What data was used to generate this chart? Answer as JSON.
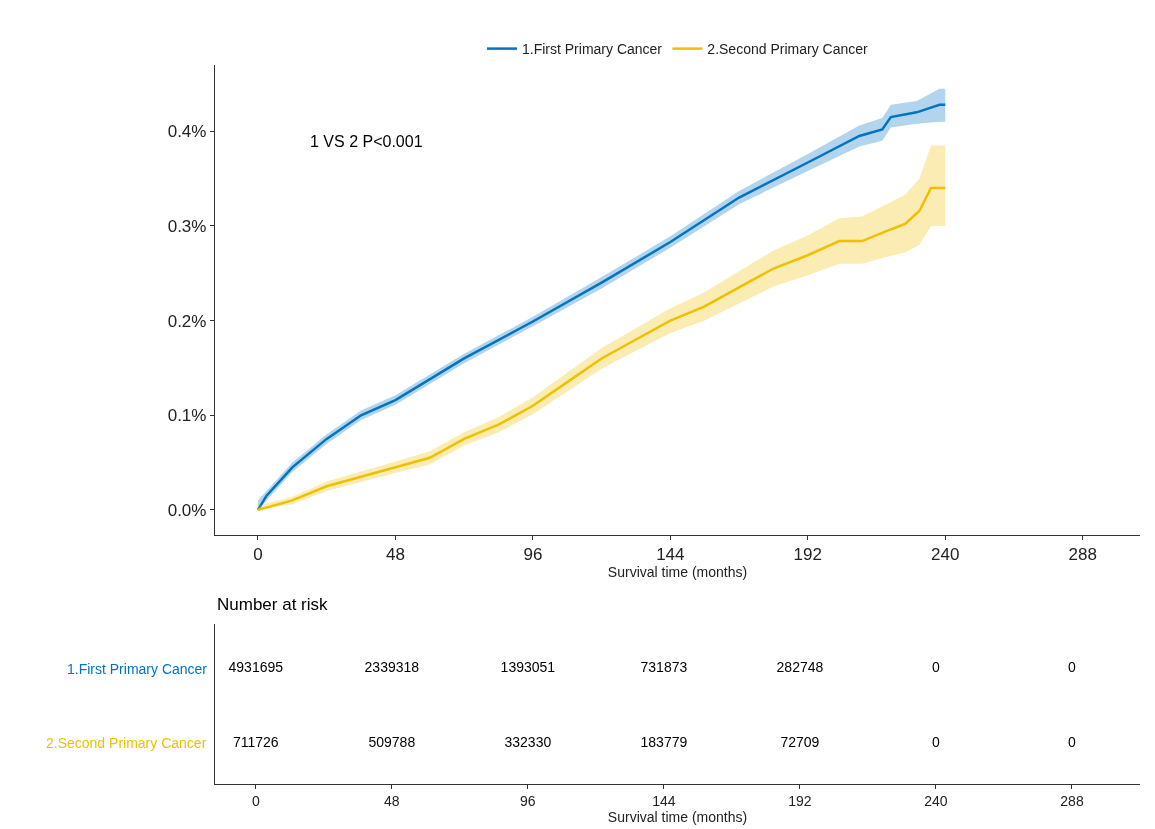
{
  "chart_data": [
    {
      "type": "line",
      "xlabel": "Survival time (months)",
      "xlim": [
        -15,
        308
      ],
      "xticks": [
        0,
        48,
        96,
        144,
        192,
        240,
        288
      ],
      "ylim": [
        -0.026,
        0.47
      ],
      "yticks": [
        {
          "value": 0,
          "label": "0.0%"
        },
        {
          "value": 0.1,
          "label": "0.1%"
        },
        {
          "value": 0.2,
          "label": "0.2%"
        },
        {
          "value": 0.3,
          "label": "0.3%"
        },
        {
          "value": 0.4,
          "label": "0.4%"
        }
      ],
      "legend": "top",
      "annotations": [
        "1 VS 2 P<0.001"
      ],
      "series": [
        {
          "name": "1.First Primary Cancer",
          "color": "#0073c2",
          "x": [
            0,
            3,
            12,
            24,
            36,
            48,
            72,
            96,
            120,
            144,
            168,
            192,
            210,
            218,
            221,
            230,
            238,
            240
          ],
          "values": [
            0,
            0.015,
            0.045,
            0.075,
            0.1,
            0.116,
            0.16,
            0.199,
            0.24,
            0.283,
            0.33,
            0.367,
            0.395,
            0.402,
            0.415,
            0.42,
            0.428,
            0.428
          ],
          "lower": [
            0,
            0.01,
            0.04,
            0.07,
            0.095,
            0.111,
            0.155,
            0.194,
            0.234,
            0.277,
            0.323,
            0.358,
            0.384,
            0.39,
            0.404,
            0.408,
            0.41,
            0.41
          ],
          "upper": [
            0.01,
            0.02,
            0.05,
            0.08,
            0.105,
            0.121,
            0.165,
            0.204,
            0.246,
            0.289,
            0.337,
            0.376,
            0.406,
            0.414,
            0.428,
            0.432,
            0.445,
            0.445
          ]
        },
        {
          "name": "2.Second Primary Cancer",
          "color": "#efc000",
          "x": [
            0,
            12,
            24,
            48,
            60,
            72,
            84,
            96,
            108,
            120,
            132,
            144,
            156,
            168,
            180,
            192,
            203,
            211,
            219,
            226,
            231,
            235,
            240
          ],
          "values": [
            0,
            0.01,
            0.025,
            0.045,
            0.055,
            0.075,
            0.09,
            0.11,
            0.135,
            0.16,
            0.18,
            0.2,
            0.215,
            0.235,
            0.255,
            0.269,
            0.284,
            0.284,
            0.294,
            0.302,
            0.316,
            0.34,
            0.34
          ],
          "lower": [
            0,
            0.006,
            0.02,
            0.039,
            0.048,
            0.068,
            0.082,
            0.101,
            0.125,
            0.149,
            0.168,
            0.187,
            0.2,
            0.218,
            0.236,
            0.248,
            0.26,
            0.26,
            0.267,
            0.272,
            0.28,
            0.3,
            0.3
          ],
          "upper": [
            0.004,
            0.014,
            0.03,
            0.051,
            0.062,
            0.082,
            0.098,
            0.119,
            0.145,
            0.171,
            0.192,
            0.213,
            0.23,
            0.252,
            0.274,
            0.29,
            0.308,
            0.31,
            0.322,
            0.333,
            0.35,
            0.385,
            0.385
          ]
        }
      ]
    },
    {
      "type": "heatmap",
      "title": "Number at risk",
      "xlabel": "Survival time (months)",
      "data_labels": true,
      "categories": [
        "0",
        "48",
        "96",
        "144",
        "192",
        "240",
        "288"
      ],
      "y_categories": [
        "1.First Primary Cancer",
        "2.Second Primary Cancer"
      ],
      "colors": [
        "#0073c2",
        "#efc000"
      ],
      "cells": [
        [
          4931695,
          2339318,
          1393051,
          731873,
          282748,
          0,
          0
        ],
        [
          711726,
          509788,
          332330,
          183779,
          72709,
          0,
          0
        ]
      ]
    }
  ]
}
